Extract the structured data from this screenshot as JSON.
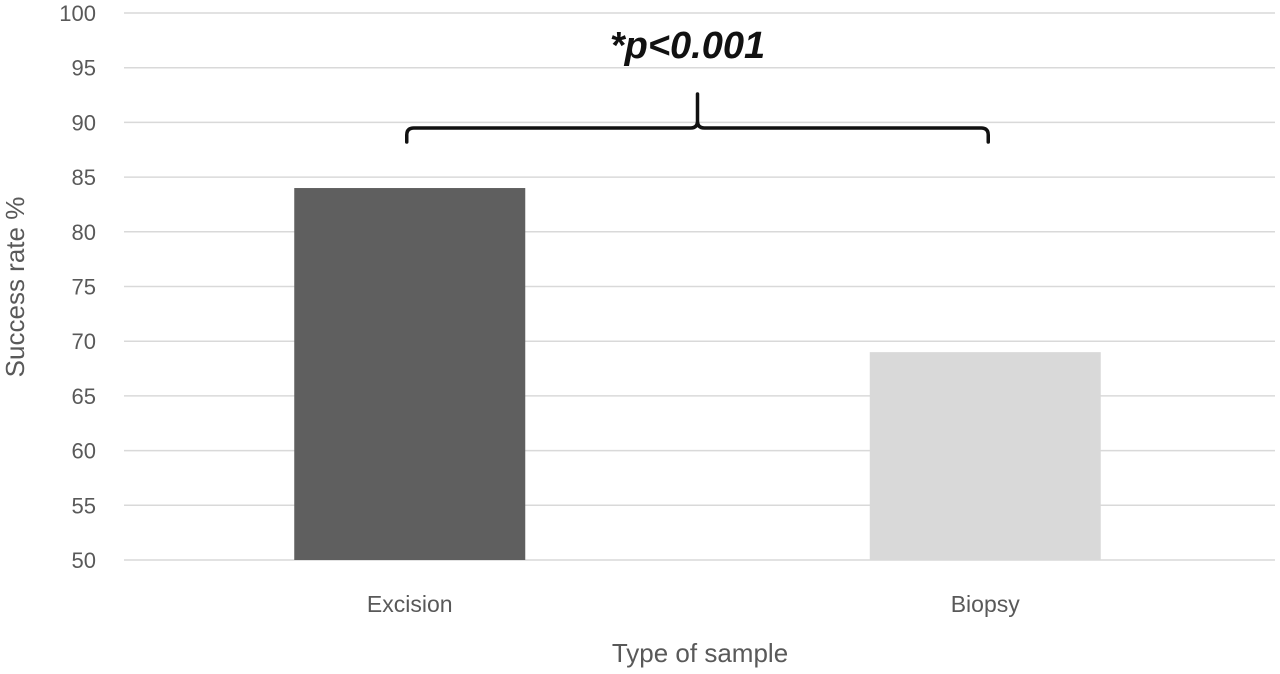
{
  "chart_data": {
    "type": "bar",
    "title": "",
    "xlabel": "Type of sample",
    "ylabel": "Success rate %",
    "categories": [
      "Excision",
      "Biopsy"
    ],
    "values": [
      84,
      69
    ],
    "bar_colors": [
      "#5f5f5f",
      "#d9d9d9"
    ],
    "ylim": [
      50,
      100
    ],
    "yticks": [
      50,
      55,
      60,
      65,
      70,
      75,
      80,
      85,
      90,
      95,
      100
    ],
    "grid": true,
    "legend": false,
    "annotation": {
      "text": "*p<0.001",
      "type": "bracket",
      "between": [
        "Excision",
        "Biopsy"
      ]
    }
  }
}
